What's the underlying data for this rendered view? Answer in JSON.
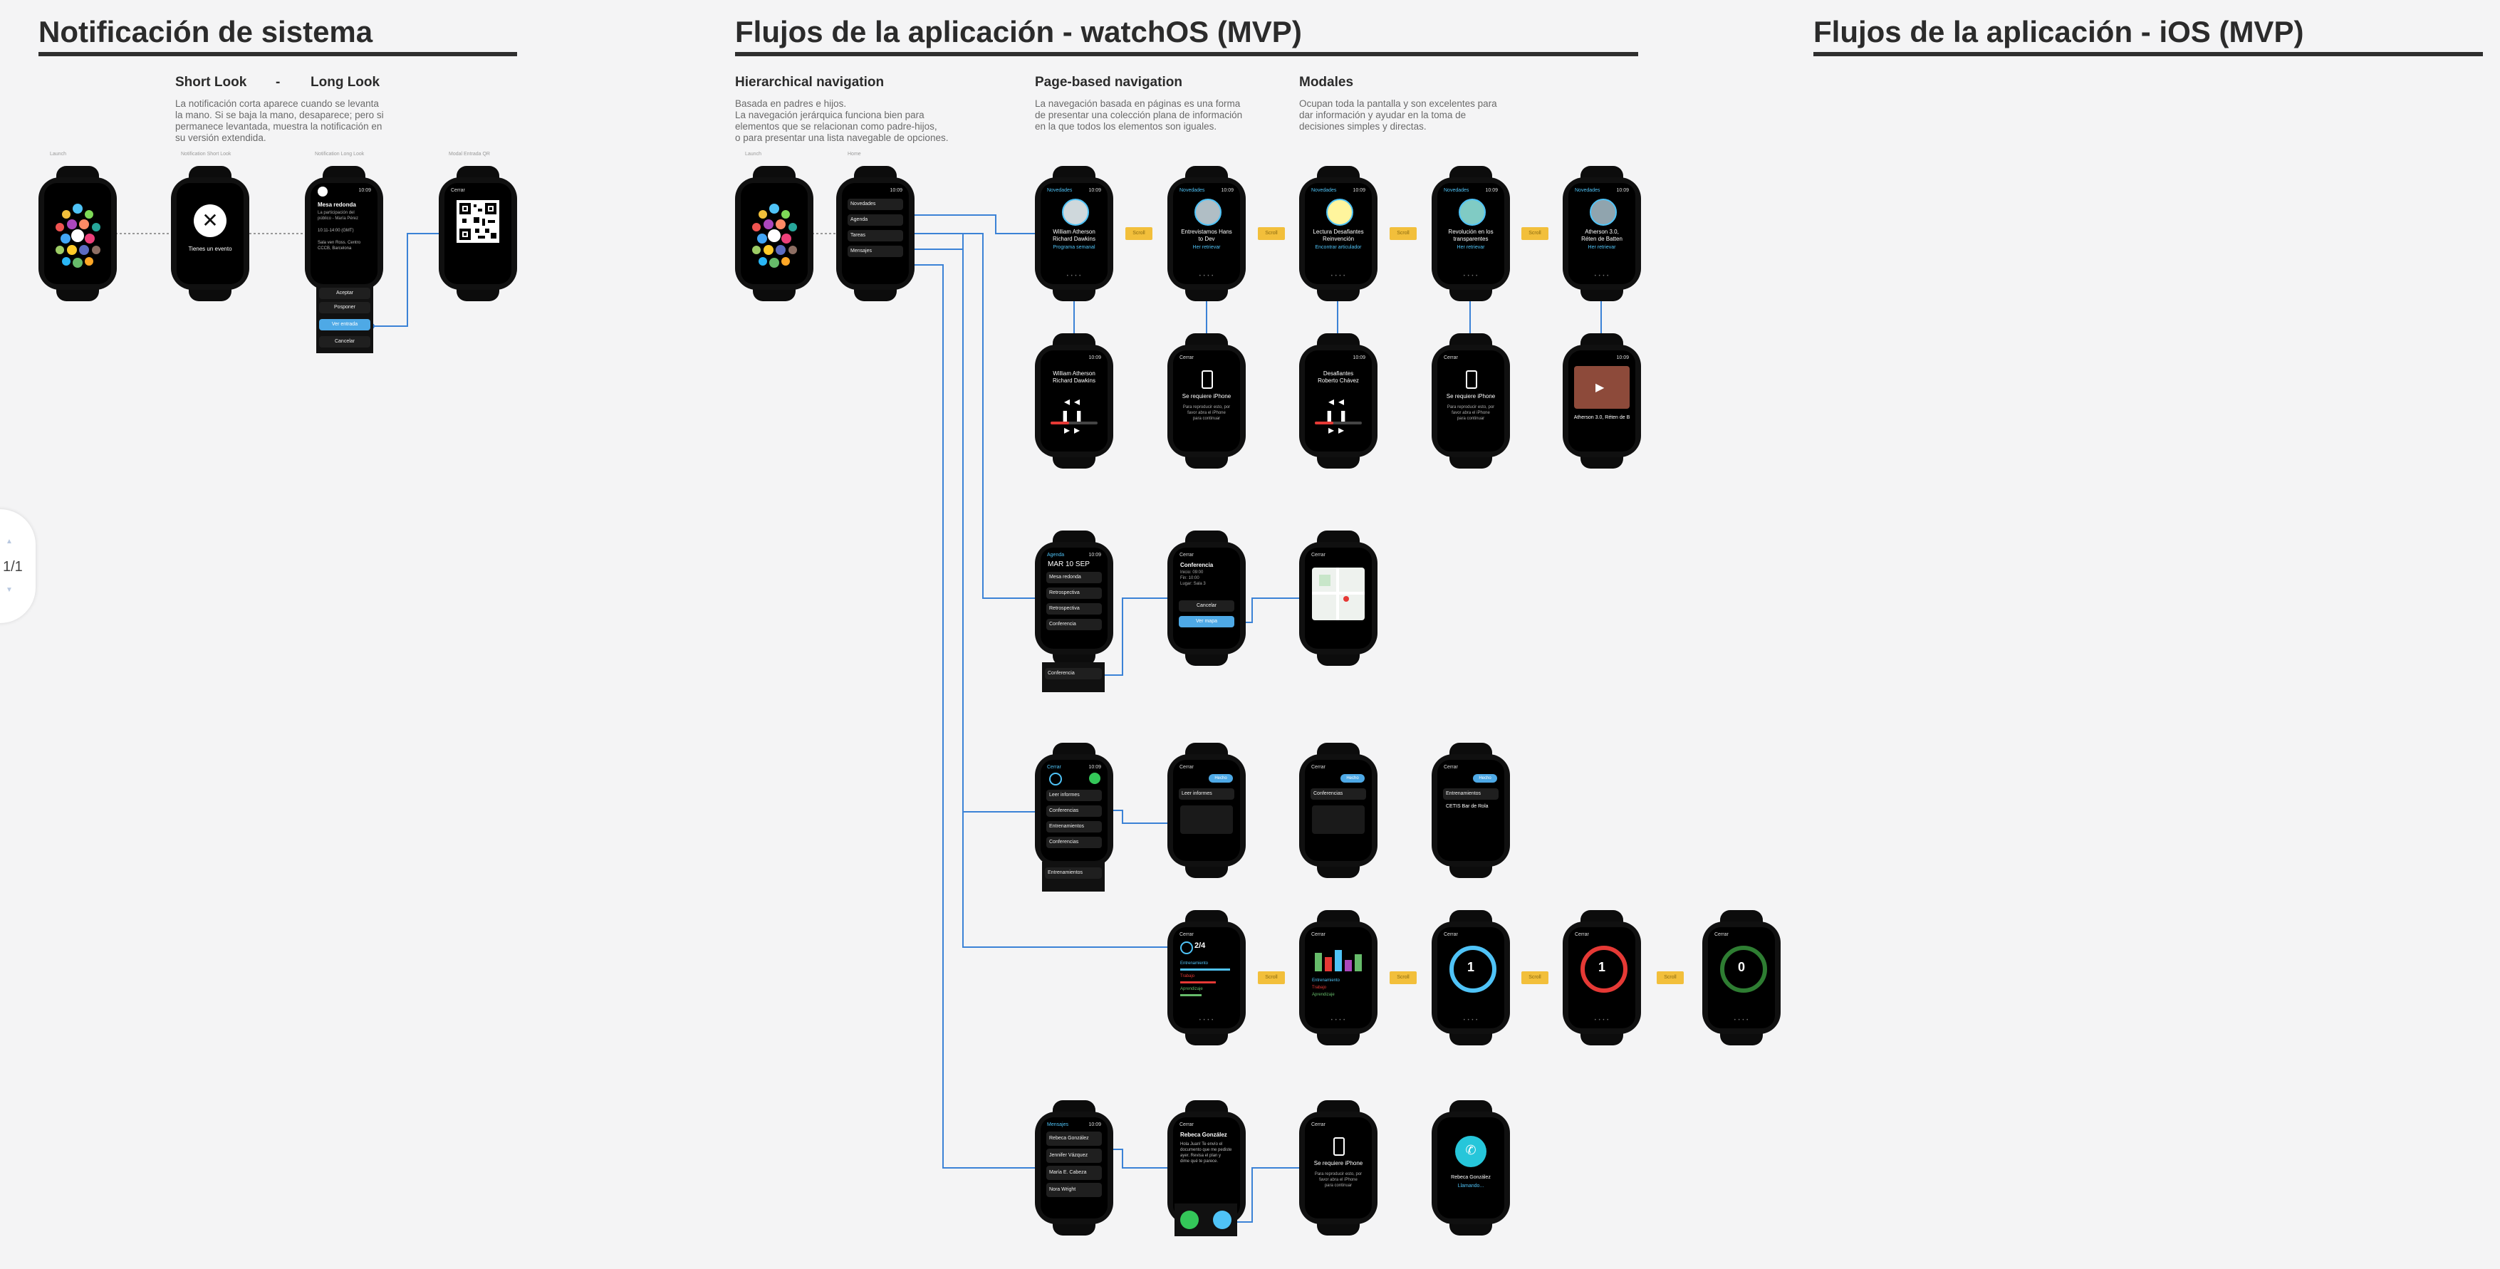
{
  "sections": {
    "notifications": "Notificación de sistema",
    "watchos": "Flujos de la aplicación - watchOS (MVP)",
    "ios": "Flujos de la aplicación - iOS (MVP)"
  },
  "notif": {
    "short_look": "Short Look",
    "dash": "-",
    "long_look": "Long Look",
    "description": "La notificación corta aparece cuando se levanta\nla mano. Si se baja la mano, desaparece; pero si\npermanece levantada, muestra la notificación en\nsu versión extendida.",
    "screen_labels": [
      "Launch",
      "Notification Short Look",
      "Notification Long Look",
      "Modal Entrada QR"
    ],
    "short_caption": "Tienes un evento",
    "long": {
      "app": "Nombre",
      "time": "10:09",
      "title": "Mesa redonda",
      "body": "La participación del\npúblico - María Pérez",
      "info1": "10:11-14:00 (GMT)",
      "info2": "Sala ven Ross. Centro\nCCCB, Barcelona",
      "actions": [
        "Aceptar",
        "Posponer",
        "Ver entrada",
        "Cancelar"
      ]
    },
    "qr_close": "Cerrar"
  },
  "watchos": {
    "hier_head": "Hierarchical navigation",
    "hier_desc": "Basada en padres e hijos.\nLa navegación jerárquica funciona bien para\nelementos que se relacionan como padre-hijos,\no para presentar una lista navegable de opciones.",
    "page_head": "Page-based navigation",
    "page_desc": "La navegación basada en páginas es una forma\nde presentar una colección plana de información\nen la que todos los elementos son iguales.",
    "modal_head": "Modales",
    "modal_desc": "Ocupan toda la pantalla y son excelentes para\ndar información y ayudar en la toma de\ndecisiones simples y directas.",
    "home_label": "Launch",
    "menu_label": "Home",
    "menu_time": "10:09",
    "menu_items": [
      "Novedades",
      "Agenda",
      "Tareas",
      "Mensajes"
    ],
    "chip_label": "Scroll",
    "speakers": [
      {
        "name": "William Atherson\nRichard Dawkins",
        "role": "Programa semanal"
      },
      {
        "name": "Entrevistamos Hans\nto Dev",
        "role": "Her retrievar"
      },
      {
        "name": "Lectura Desafiantes\nReinvención",
        "role": "Encontrar articulador"
      },
      {
        "name": "Revolución en los\ntransparentes",
        "role": "Her retrievar"
      },
      {
        "name": "Atherson 3.0,\nRéten de Batten",
        "role": "Her retrievar"
      }
    ],
    "now_playing": [
      {
        "title": "William Atherson\nRichard Dawkins"
      },
      {
        "title": "Desafiantes\nRoberto Chávez"
      }
    ],
    "requires_iphone": "Se requiere iPhone",
    "requires_iphone_desc": "Para reproducir esto, por\nfavor abra el iPhone\npara continuar",
    "video_caption": "Atherson 3.0, Réten de B",
    "agenda": {
      "back": "Agenda",
      "time": "10:09",
      "date": "MAR 10 SEP",
      "items": [
        "Mesa redonda",
        "Retrospectiva",
        "Retrospectiva",
        "Conferencia",
        "Conferencia"
      ],
      "detail_title": "Conferencia",
      "detail_lines": [
        "Inicio: 09:00",
        "Fin: 10:00",
        "Lugar: Sala 3"
      ],
      "cancel": "Cancelar",
      "locate": "Ver mapa"
    },
    "tasks": {
      "back": "Cerrar",
      "time": "10:09",
      "items": [
        "Leer informes",
        "Conferencias",
        "Entrenamientos",
        "Conferencias",
        "Entrenamientos"
      ],
      "detail_titles": [
        "Leer informes",
        "Conferencias",
        "Entrenamientos"
      ],
      "detail_sub": "CETIS Bar de Rola",
      "toggle": "Hecho"
    },
    "progress": {
      "values": [
        "2/4",
        "1",
        "1",
        "0"
      ],
      "subs": [
        "",
        "",
        "",
        ""
      ],
      "legend": [
        "Entrenamiento",
        "Trabajo",
        "Aprendizaje"
      ]
    },
    "messages": {
      "back": "Mensajes",
      "time": "10:09",
      "items": [
        "Rebeca González",
        "Jennifer Vázquez",
        "María E. Cabeza",
        "Nora Wright"
      ],
      "detail_name": "Rebeca González",
      "detail_body": "Hola Juan! Te envío el\ndocumento que me pediste\nayer. Revisa el plan y\ndime qué te parece.",
      "call_name": "Rebeca González",
      "call_status": "Llamando..."
    }
  },
  "zoom": "1/1"
}
